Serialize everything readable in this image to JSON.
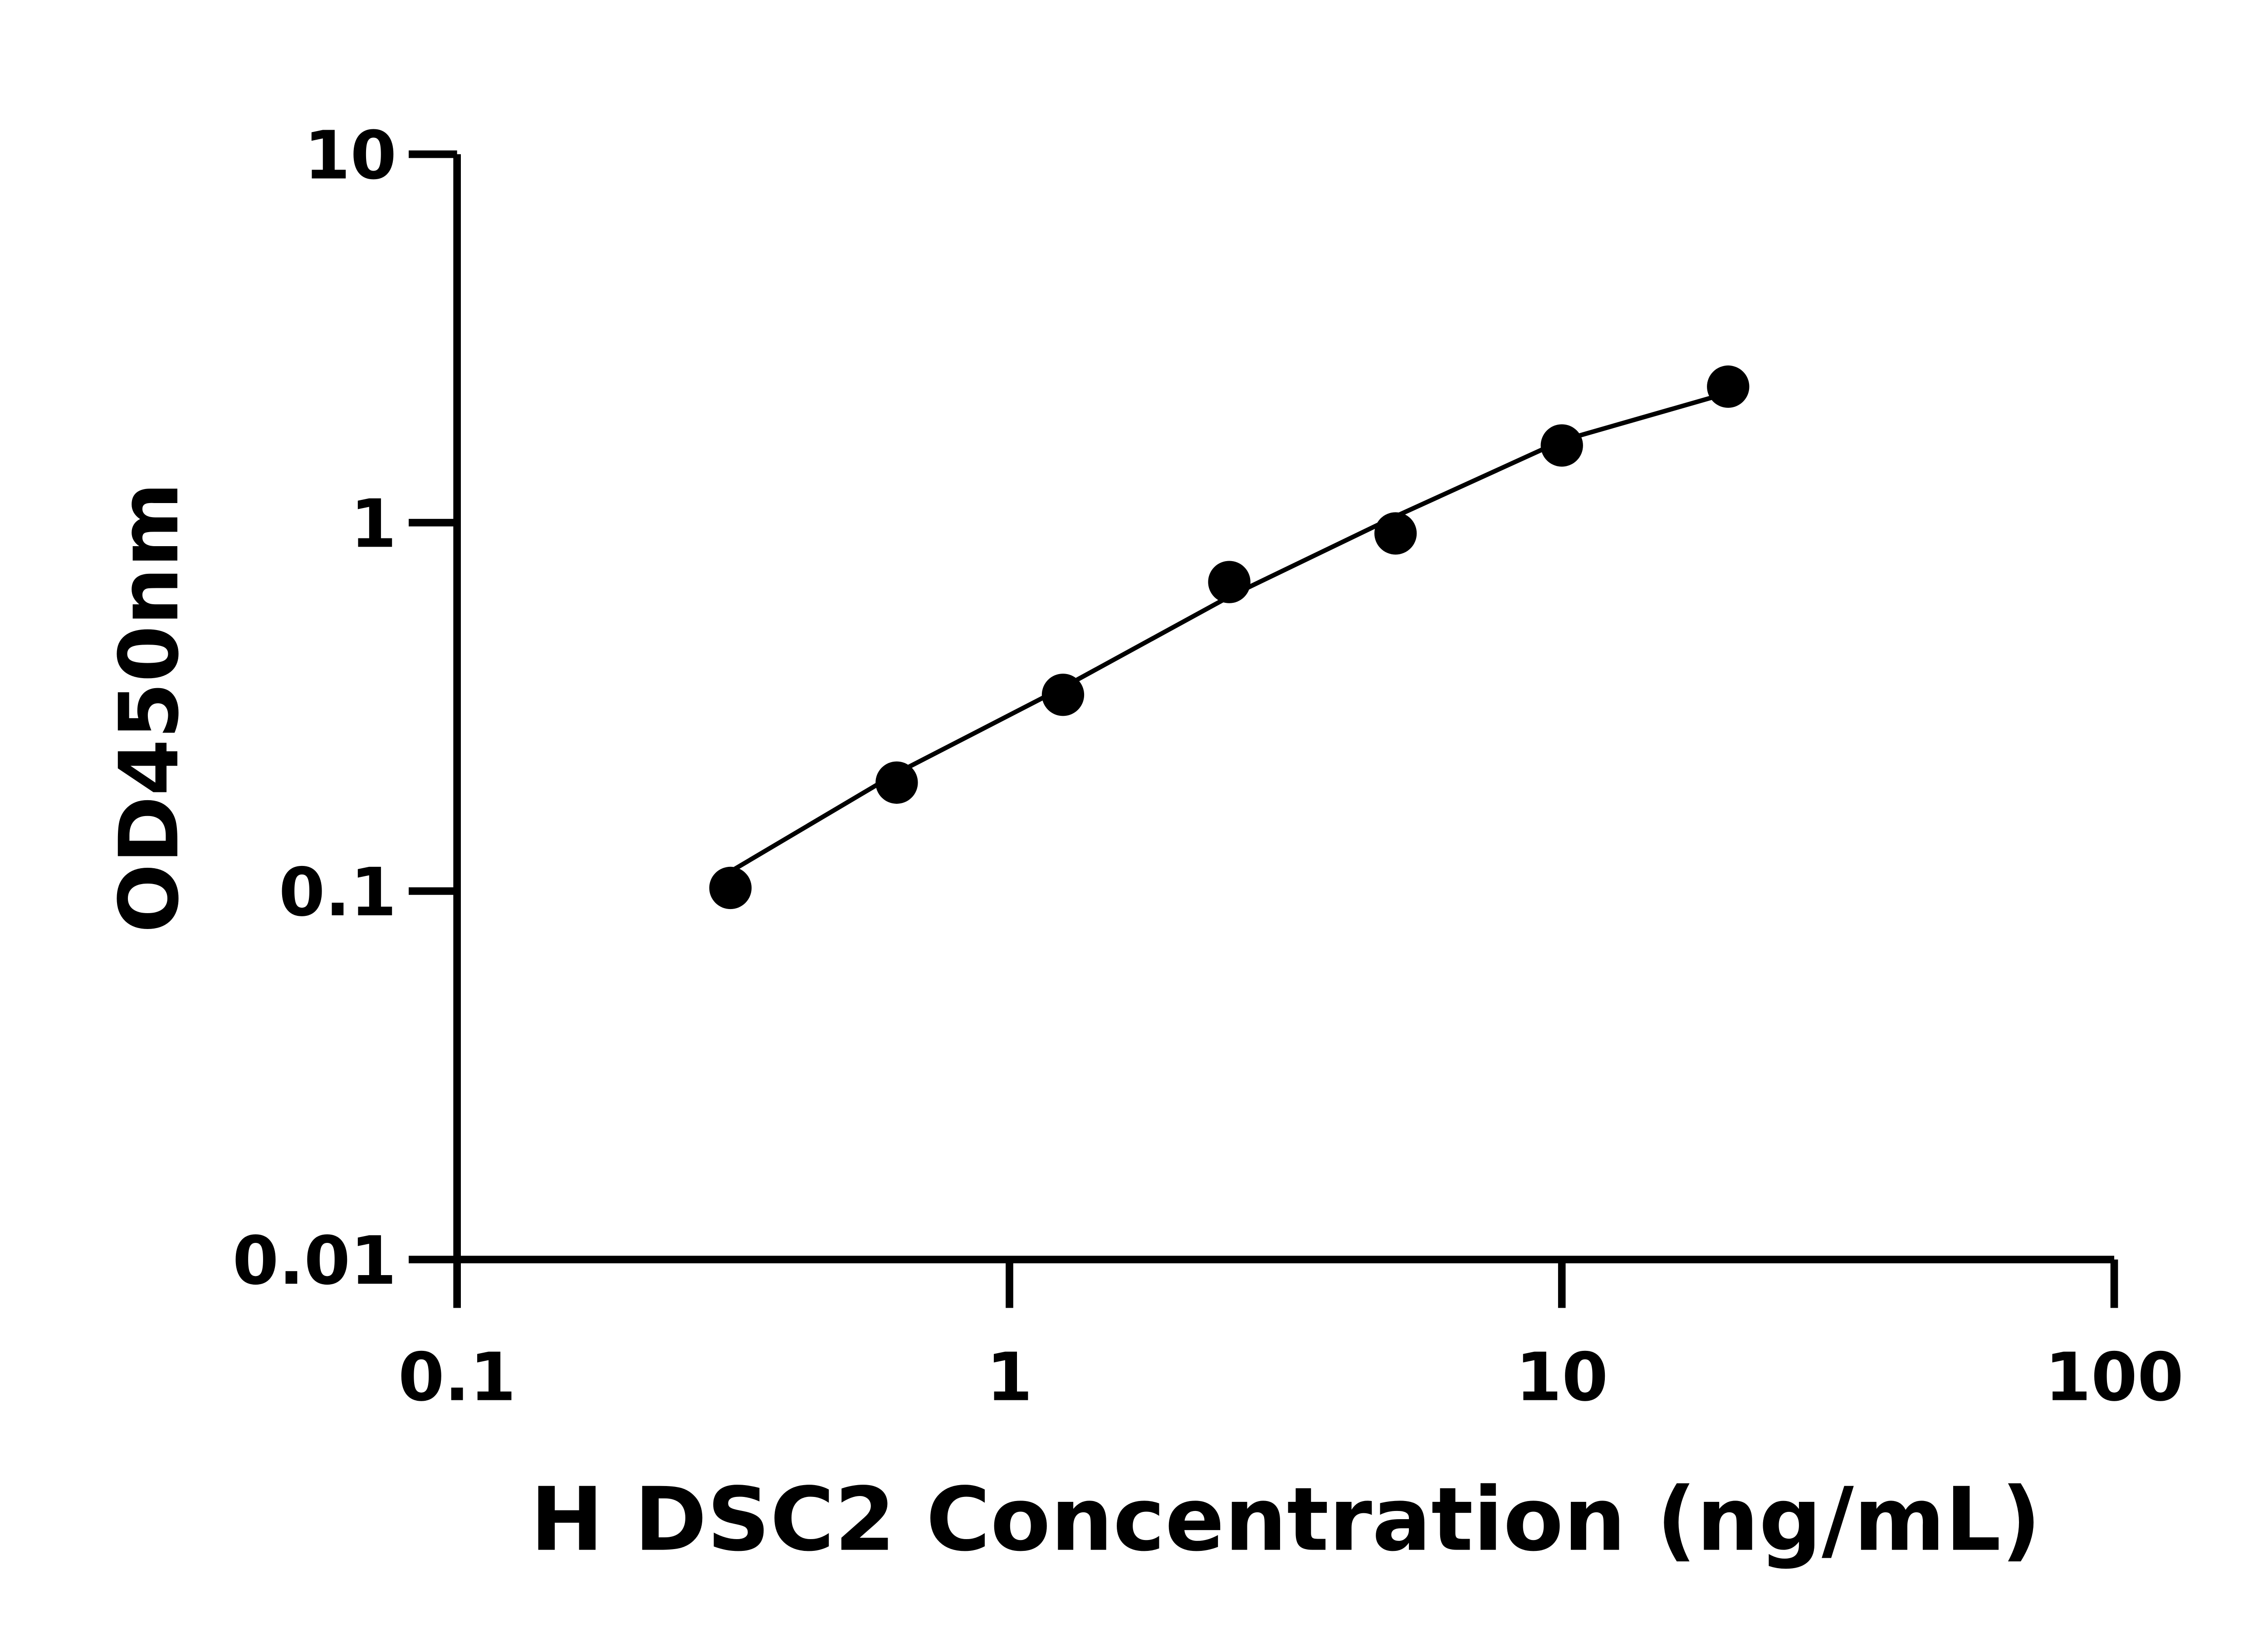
{
  "chart_data": {
    "type": "scatter",
    "xlabel": "H DSC2 Concentration (ng/mL)",
    "ylabel": "OD450nm",
    "xscale": "log",
    "yscale": "log",
    "xlim": [
      0.1,
      100
    ],
    "ylim": [
      0.01,
      10
    ],
    "xticks": [
      0.1,
      1,
      10,
      100
    ],
    "yticks": [
      0.01,
      0.1,
      1,
      10
    ],
    "x": [
      0.3125,
      0.625,
      1.25,
      2.5,
      5,
      10,
      20
    ],
    "series": [
      {
        "type": "scatter",
        "color": "#000000",
        "values": [
          0.102,
          0.197,
          0.341,
          0.69,
          0.935,
          1.62,
          2.34
        ]
      },
      {
        "type": "line",
        "color": "#000000",
        "values": [
          0.113,
          0.209,
          0.357,
          0.63,
          1.04,
          1.67,
          2.25
        ]
      }
    ]
  }
}
